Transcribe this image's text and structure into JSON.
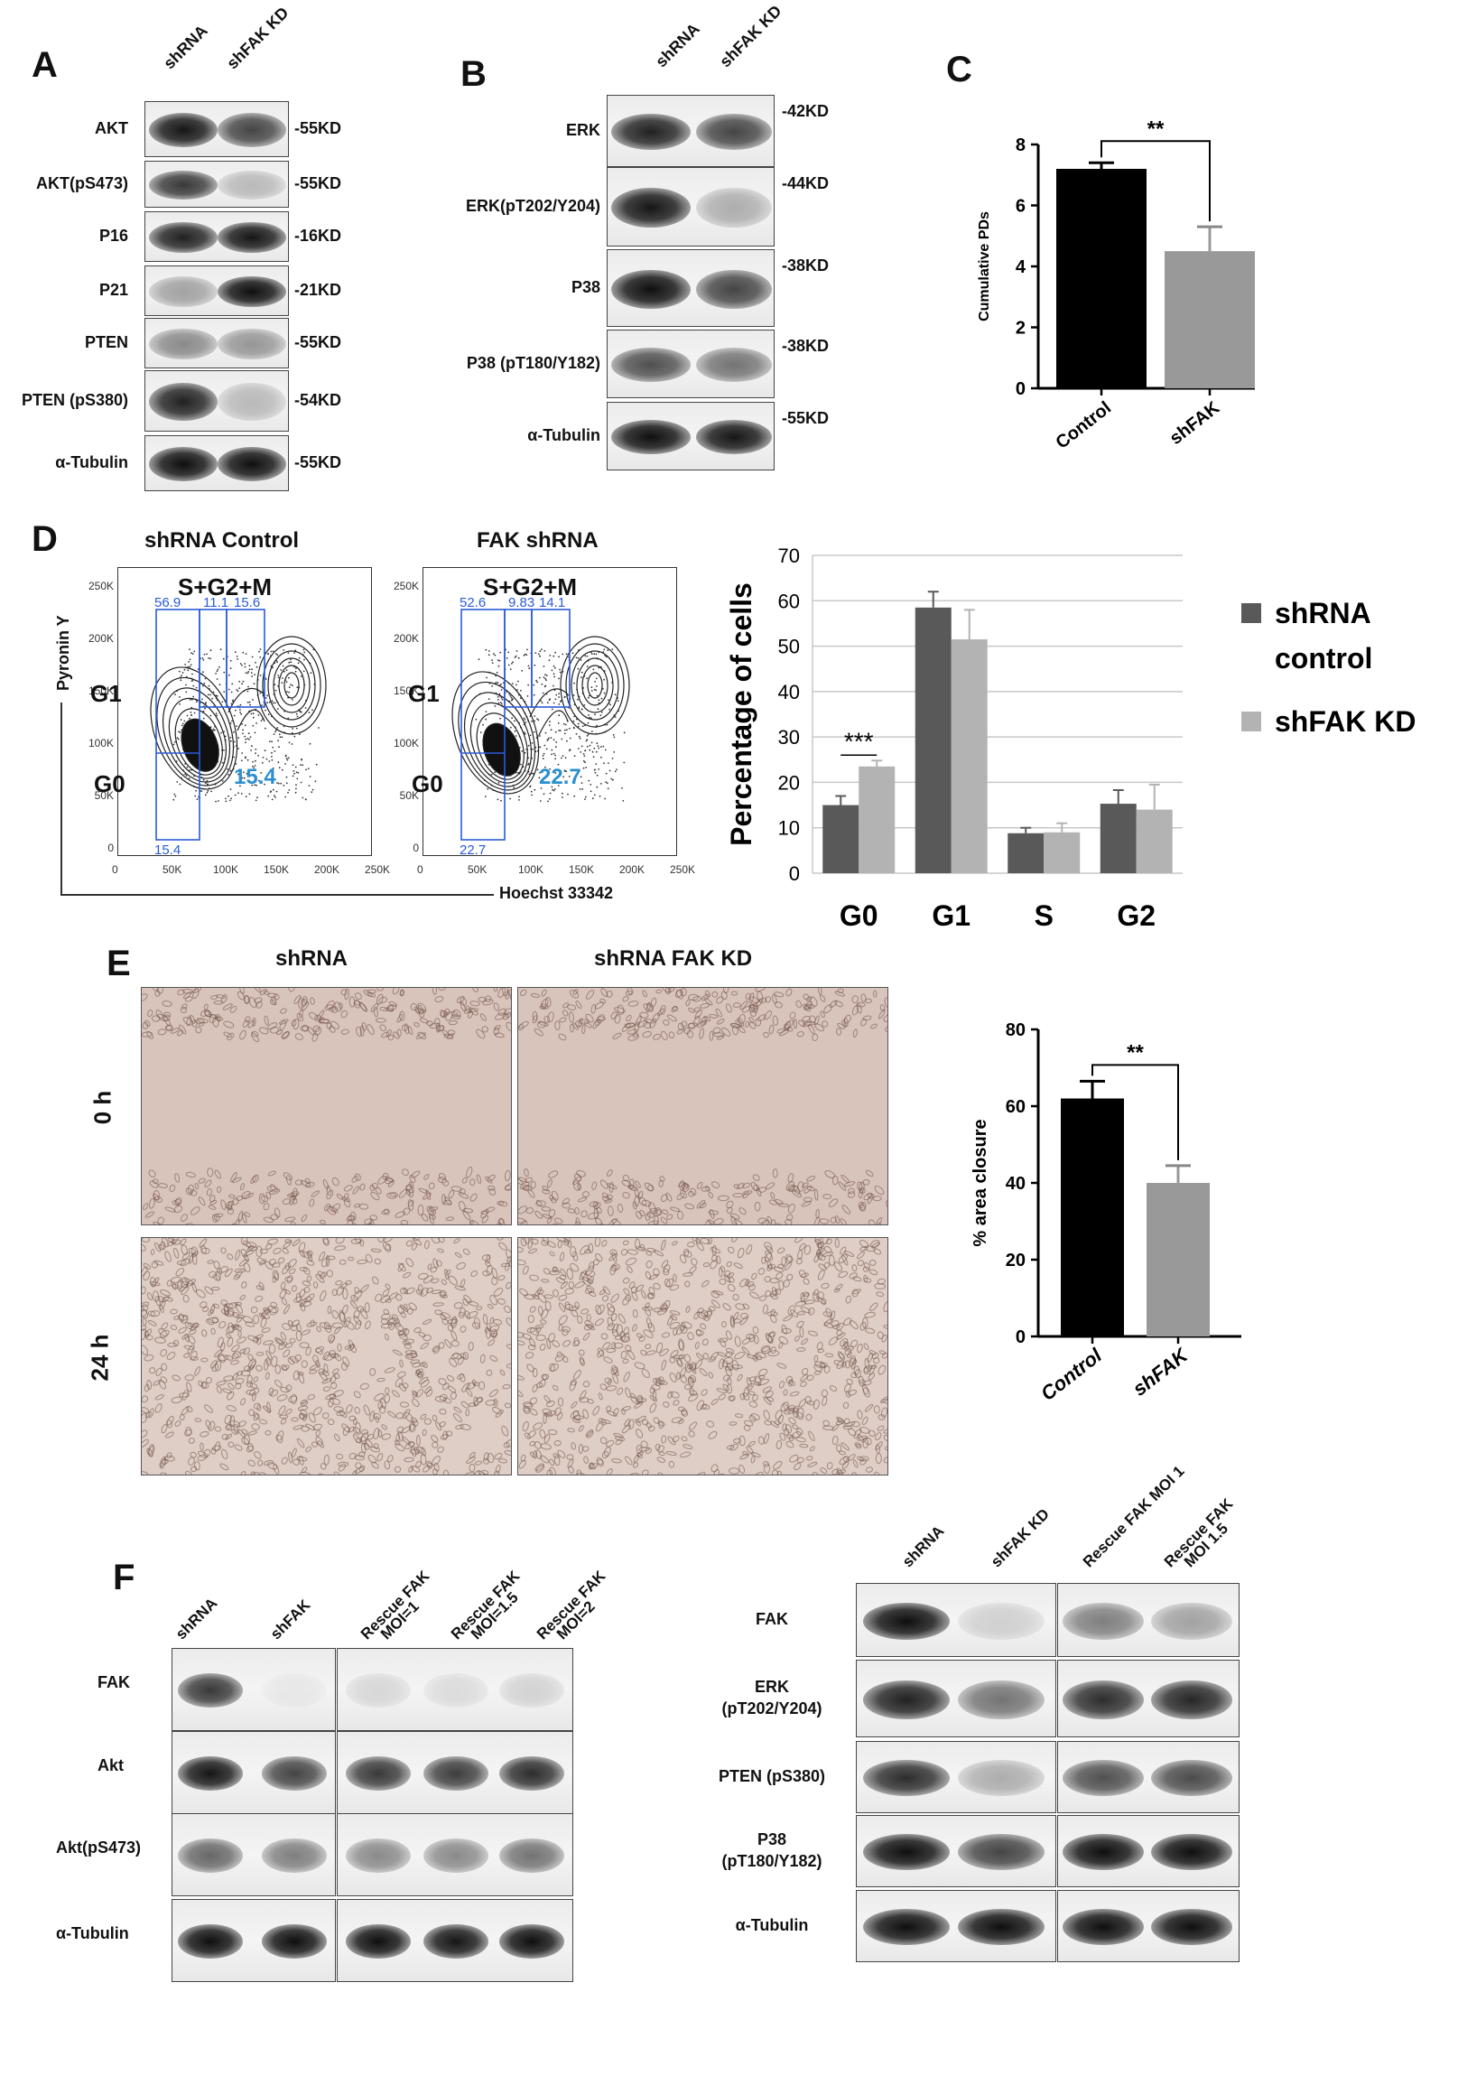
{
  "panels": {
    "A": {
      "letter": "A",
      "columns": [
        "shRNA",
        "shFAK KD"
      ],
      "rows": [
        {
          "label": "AKT",
          "kd": "-55KD"
        },
        {
          "label": "AKT(pS473)",
          "kd": "-55KD"
        },
        {
          "label": "P16",
          "kd": "-16KD"
        },
        {
          "label": "P21",
          "kd": "-21KD"
        },
        {
          "label": "PTEN",
          "kd": "-55KD"
        },
        {
          "label": "PTEN (pS380)",
          "kd": "-54KD"
        },
        {
          "label": "α-Tubulin",
          "kd": "-55KD"
        }
      ]
    },
    "B": {
      "letter": "B",
      "columns": [
        "shRNA",
        "shFAK KD"
      ],
      "rows": [
        {
          "label": "ERK",
          "kd": "-42KD"
        },
        {
          "label": "ERK(pT202/Y204)",
          "kd": "-44KD"
        },
        {
          "label": "P38",
          "kd": "-38KD"
        },
        {
          "label": "P38 (pT180/Y182)",
          "kd": "-38KD"
        },
        {
          "label": "α-Tubulin",
          "kd": "-55KD"
        }
      ]
    },
    "C": {
      "letter": "C"
    },
    "D": {
      "letter": "D",
      "flow": [
        {
          "title": "shRNA Control",
          "phase": "S+G2+M",
          "g0_top": "56.9",
          "g_mid": "11.1",
          "g_right": "15.6",
          "big": "15.4",
          "g0_bottom": "15.4"
        },
        {
          "title": "FAK shRNA",
          "phase": "S+G2+M",
          "g0_top": "52.6",
          "g_mid": "9.83",
          "g_right": "14.1",
          "big": "22.7",
          "g0_bottom": "22.7"
        }
      ],
      "g1": "G1",
      "g0": "G0",
      "y_axis": "Pyronin Y",
      "x_axis": "Hoechst 33342",
      "y_ticks": [
        "250K",
        "200K",
        "150K",
        "100K",
        "50K",
        "0"
      ],
      "x_ticks": [
        "0",
        "50K",
        "100K",
        "150K",
        "200K",
        "250K"
      ]
    },
    "E": {
      "letter": "E",
      "columns": [
        "shRNA",
        "shRNA FAK KD"
      ],
      "rows": [
        "0 h",
        "24 h"
      ]
    },
    "F": {
      "letter": "F",
      "left_columns": [
        "shRNA",
        "shFAK",
        "Rescue FAK MOI=1",
        "Rescue FAK MOI=1.5",
        "Rescue FAK MOI=2"
      ],
      "left_rows": [
        "FAK",
        "Akt",
        "Akt(pS473)",
        "α-Tubulin"
      ],
      "right_columns": [
        "shRNA",
        "shFAK KD",
        "Rescue FAK MOI 1",
        "Rescue FAK MOI 1.5"
      ],
      "right_rows": [
        "FAK",
        "ERK (pT202/Y204)",
        "PTEN (pS380)",
        "P38 (pT180/Y182)",
        "α-Tubulin"
      ]
    }
  },
  "chart_data": [
    {
      "id": "C",
      "type": "bar",
      "categories": [
        "Control",
        "shFAK"
      ],
      "values": [
        7.2,
        4.5
      ],
      "errors": [
        0.2,
        0.8
      ],
      "colors": [
        "#000000",
        "#999999"
      ],
      "ylabel": "Cumulative PDs",
      "ylim": [
        0,
        8
      ],
      "yticks": [
        0,
        2,
        4,
        6,
        8
      ],
      "significance": "**"
    },
    {
      "id": "D",
      "type": "bar",
      "categories": [
        "G0",
        "G1",
        "S",
        "G2"
      ],
      "ylabel": "Percentage of cells",
      "ylim": [
        0,
        70
      ],
      "yticks": [
        0,
        10,
        20,
        30,
        40,
        50,
        60,
        70
      ],
      "grid": true,
      "legend": "right",
      "series": [
        {
          "name": "shRNA control",
          "color": "#595959",
          "values": [
            15,
            58.5,
            8.8,
            15.3
          ],
          "errors": [
            2,
            3.5,
            1.2,
            3
          ]
        },
        {
          "name": "shFAK KD",
          "color": "#b3b3b3",
          "values": [
            23.5,
            51.5,
            9,
            14
          ],
          "errors": [
            1.3,
            6.5,
            2,
            5.5
          ]
        }
      ],
      "significance": "***"
    },
    {
      "id": "E",
      "type": "bar",
      "categories": [
        "Control",
        "shFAK"
      ],
      "values": [
        62,
        40
      ],
      "errors": [
        4.5,
        4.5
      ],
      "colors": [
        "#000000",
        "#999999"
      ],
      "ylabel": "% area closure",
      "ylim": [
        0,
        80
      ],
      "yticks": [
        0,
        20,
        40,
        60,
        80
      ],
      "significance": "**"
    }
  ]
}
